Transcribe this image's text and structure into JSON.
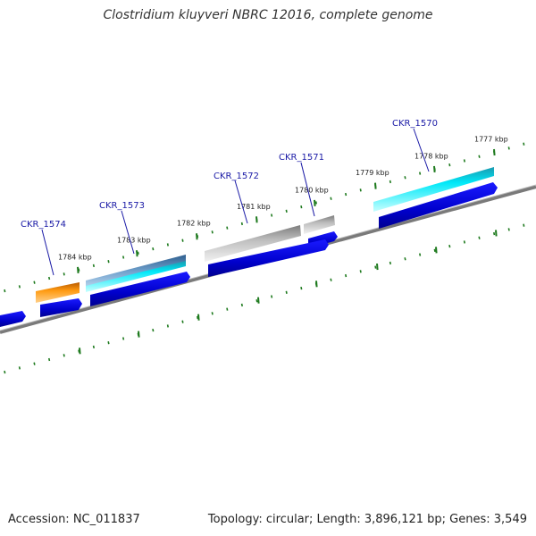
{
  "title": "Clostridium kluyveri NBRC 12016, complete genome",
  "footer": {
    "accession": "Accession: NC_011837",
    "topology": "Topology: circular; Length: 3,896,121 bp; Genes: 3,549"
  },
  "colors": {
    "tick": "#1e7a1e",
    "backbone": "#7a7a7a",
    "cds": "#0a0ad2",
    "gene_label": "#1a1aa6"
  },
  "ticks": [
    {
      "label": "1777 kbp",
      "kbp": 1777
    },
    {
      "label": "1778 kbp",
      "kbp": 1778
    },
    {
      "label": "1779 kbp",
      "kbp": 1779
    },
    {
      "label": "1780 kbp",
      "kbp": 1780
    },
    {
      "label": "1781 kbp",
      "kbp": 1781
    },
    {
      "label": "1782 kbp",
      "kbp": 1782
    },
    {
      "label": "1783 kbp",
      "kbp": 1783
    },
    {
      "label": "1784 kbp",
      "kbp": 1784
    }
  ],
  "genes": [
    {
      "name": "CKR_1570",
      "color": "cyan"
    },
    {
      "name": "CKR_1571",
      "color": "gray"
    },
    {
      "name": "CKR_1572",
      "color": "gray"
    },
    {
      "name": "CKR_1573",
      "color": "steelblue-cyan"
    },
    {
      "name": "CKR_1574",
      "color": "orange"
    }
  ]
}
